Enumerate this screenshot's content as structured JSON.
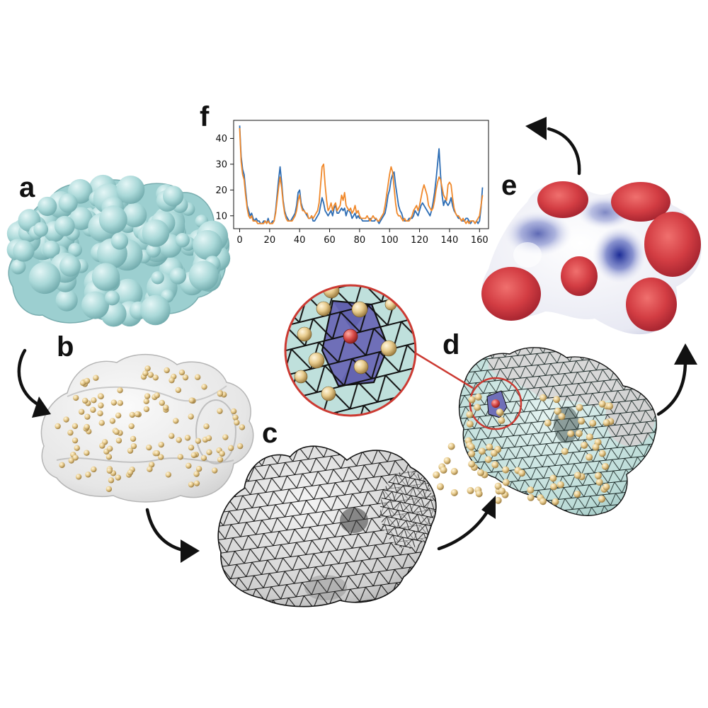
{
  "panels": {
    "a": {
      "letter": "a",
      "description_name": "protein-surface"
    },
    "b": {
      "letter": "b",
      "description_name": "transparent-surface-with-points"
    },
    "c": {
      "letter": "c",
      "description_name": "triangulated-mesh"
    },
    "d": {
      "letter": "d",
      "description_name": "mesh-with-points-and-zoom"
    },
    "e": {
      "letter": "e",
      "description_name": "electrostatic-surface"
    },
    "f": {
      "letter": "f",
      "description_name": "line-plot"
    }
  },
  "colors": {
    "protein": "#a9d8d8",
    "protein_shadow": "#7fb8ba",
    "sphere": "#e8cc8e",
    "mesh_fill": "#dcdcdc",
    "mesh_line": "#111111",
    "teal_mesh": "#c6e4e0",
    "highlight": "#6f6fb8",
    "center_sphere": "#d84a48",
    "ring": "#cc3a32",
    "positive": "#d9454a",
    "negative": "#3344a4",
    "neutral": "#f4f4f6",
    "series_blue": "#2d6db4",
    "series_orange": "#f0882a"
  },
  "chart_data": {
    "type": "line",
    "title": "",
    "xlabel": "",
    "ylabel": "",
    "xlim": [
      -4,
      166
    ],
    "ylim": [
      5,
      47
    ],
    "xticks": [
      0,
      20,
      40,
      60,
      80,
      100,
      120,
      140,
      160
    ],
    "yticks": [
      10,
      20,
      30,
      40
    ],
    "grid": false,
    "series": [
      {
        "color": "#2d6db4",
        "x": [
          0,
          1,
          2,
          3,
          4,
          5,
          6,
          7,
          8,
          9,
          10,
          11,
          12,
          13,
          14,
          15,
          16,
          17,
          18,
          19,
          20,
          21,
          22,
          23,
          24,
          25,
          26,
          27,
          28,
          29,
          30,
          31,
          32,
          33,
          34,
          35,
          36,
          37,
          38,
          39,
          40,
          41,
          42,
          43,
          44,
          45,
          46,
          47,
          48,
          49,
          50,
          51,
          52,
          53,
          54,
          55,
          56,
          57,
          58,
          59,
          60,
          61,
          62,
          63,
          64,
          65,
          66,
          67,
          68,
          69,
          70,
          71,
          72,
          73,
          74,
          75,
          76,
          77,
          78,
          79,
          80,
          81,
          82,
          83,
          84,
          85,
          86,
          87,
          88,
          89,
          90,
          91,
          92,
          93,
          94,
          95,
          96,
          97,
          98,
          99,
          100,
          101,
          102,
          103,
          104,
          105,
          106,
          107,
          108,
          109,
          110,
          111,
          112,
          113,
          114,
          115,
          116,
          117,
          118,
          119,
          120,
          121,
          122,
          123,
          124,
          125,
          126,
          127,
          128,
          129,
          130,
          131,
          132,
          133,
          134,
          135,
          136,
          137,
          138,
          139,
          140,
          141,
          142,
          143,
          144,
          145,
          146,
          147,
          148,
          149,
          150,
          151,
          152,
          153,
          154,
          155,
          156,
          157,
          158,
          159,
          160,
          161,
          162
        ],
        "y": [
          45,
          33,
          28,
          26,
          20,
          14,
          12,
          10,
          11,
          9,
          8,
          9,
          8,
          8,
          7,
          7,
          8,
          8,
          7,
          9,
          7,
          7,
          8,
          8,
          12,
          18,
          24,
          29,
          23,
          16,
          12,
          10,
          9,
          8,
          8,
          9,
          10,
          11,
          14,
          19,
          20,
          15,
          13,
          12,
          11,
          10,
          9,
          9,
          10,
          8,
          8,
          9,
          10,
          11,
          14,
          17,
          15,
          12,
          11,
          10,
          11,
          12,
          10,
          13,
          14,
          11,
          11,
          12,
          13,
          12,
          13,
          10,
          12,
          12,
          11,
          9,
          10,
          11,
          9,
          10,
          9,
          9,
          8,
          8,
          8,
          8,
          8,
          9,
          8,
          8,
          8,
          9,
          8,
          7,
          8,
          9,
          10,
          11,
          14,
          18,
          20,
          24,
          26,
          27,
          22,
          18,
          14,
          12,
          11,
          9,
          8,
          8,
          8,
          9,
          9,
          9,
          10,
          12,
          11,
          10,
          12,
          14,
          15,
          14,
          13,
          12,
          11,
          10,
          12,
          15,
          19,
          24,
          30,
          36,
          26,
          18,
          14,
          16,
          15,
          14,
          15,
          17,
          14,
          12,
          11,
          10,
          9,
          9,
          8,
          8,
          8,
          9,
          9,
          8,
          7,
          8,
          8,
          7,
          8,
          7,
          8,
          13,
          21
        ]
      },
      {
        "color": "#f0882a",
        "x": [
          0,
          1,
          2,
          3,
          4,
          5,
          6,
          7,
          8,
          9,
          10,
          11,
          12,
          13,
          14,
          15,
          16,
          17,
          18,
          19,
          20,
          21,
          22,
          23,
          24,
          25,
          26,
          27,
          28,
          29,
          30,
          31,
          32,
          33,
          34,
          35,
          36,
          37,
          38,
          39,
          40,
          41,
          42,
          43,
          44,
          45,
          46,
          47,
          48,
          49,
          50,
          51,
          52,
          53,
          54,
          55,
          56,
          57,
          58,
          59,
          60,
          61,
          62,
          63,
          64,
          65,
          66,
          67,
          68,
          69,
          70,
          71,
          72,
          73,
          74,
          75,
          76,
          77,
          78,
          79,
          80,
          81,
          82,
          83,
          84,
          85,
          86,
          87,
          88,
          89,
          90,
          91,
          92,
          93,
          94,
          95,
          96,
          97,
          98,
          99,
          100,
          101,
          102,
          103,
          104,
          105,
          106,
          107,
          108,
          109,
          110,
          111,
          112,
          113,
          114,
          115,
          116,
          117,
          118,
          119,
          120,
          121,
          122,
          123,
          124,
          125,
          126,
          127,
          128,
          129,
          130,
          131,
          132,
          133,
          134,
          135,
          136,
          137,
          138,
          139,
          140,
          141,
          142,
          143,
          144,
          145,
          146,
          147,
          148,
          149,
          150,
          151,
          152,
          153,
          154,
          155,
          156,
          157,
          158,
          159,
          160,
          161,
          162
        ],
        "y": [
          44,
          31,
          26,
          24,
          18,
          13,
          10,
          9,
          10,
          8,
          8,
          8,
          7,
          7,
          7,
          7,
          7,
          8,
          7,
          8,
          7,
          7,
          7,
          8,
          11,
          16,
          21,
          25,
          21,
          15,
          11,
          9,
          8,
          8,
          8,
          8,
          9,
          10,
          12,
          16,
          18,
          14,
          12,
          12,
          11,
          11,
          9,
          9,
          10,
          9,
          10,
          11,
          12,
          15,
          22,
          29,
          30,
          22,
          16,
          12,
          13,
          15,
          12,
          14,
          15,
          12,
          13,
          14,
          18,
          16,
          19,
          14,
          13,
          12,
          13,
          11,
          12,
          14,
          11,
          12,
          10,
          9,
          9,
          9,
          9,
          10,
          9,
          8,
          9,
          10,
          9,
          9,
          8,
          8,
          9,
          10,
          11,
          14,
          18,
          22,
          26,
          29,
          27,
          21,
          15,
          11,
          10,
          10,
          9,
          8,
          9,
          8,
          8,
          8,
          9,
          10,
          12,
          13,
          14,
          12,
          14,
          17,
          20,
          22,
          20,
          18,
          14,
          13,
          12,
          13,
          16,
          20,
          23,
          25,
          24,
          21,
          18,
          17,
          16,
          22,
          23,
          22,
          17,
          13,
          11,
          10,
          10,
          9,
          8,
          9,
          8,
          7,
          8,
          7,
          8,
          8,
          8,
          7,
          8,
          9,
          10,
          14,
          18
        ]
      }
    ]
  }
}
